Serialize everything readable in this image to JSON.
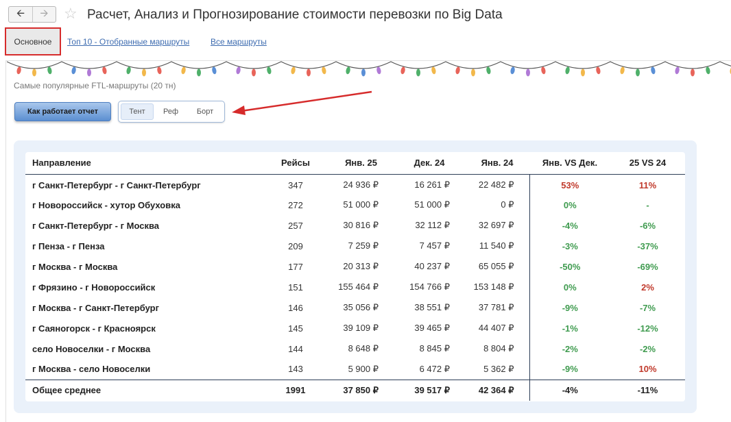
{
  "header": {
    "back_icon": "arrow-left-icon",
    "forward_icon": "arrow-right-icon",
    "favorite_icon": "star-icon",
    "title": "Расчет, Анализ и Прогнозирование стоимости перевозки по Big Data"
  },
  "tabs": [
    {
      "label": "Основное",
      "active": true
    },
    {
      "label": "Топ 10 - Отобранные маршруты",
      "active": false
    },
    {
      "label": "Все маршруты",
      "active": false
    }
  ],
  "report": {
    "subtitle": "Самые популярные FTL-маршруты (20 тн)",
    "how_button": "Как работает отчет",
    "body_types": [
      "Тент",
      "Реф",
      "Борт"
    ],
    "body_type_selected": "Тент"
  },
  "colors": {
    "accent_blue": "#5b8fd1",
    "highlight_red": "#d62b2b",
    "growth_red": "#c0392b",
    "decline_green": "#3f9b4f",
    "panel_bg": "#eaf1fa"
  },
  "table": {
    "columns": [
      "Направление",
      "Рейсы",
      "Янв. 25",
      "Дек. 24",
      "Янв. 24",
      "Янв. VS Дек.",
      "25 VS 24"
    ],
    "rows": [
      {
        "dir": "г Санкт-Петербург - г Санкт-Петербург",
        "trips": "347",
        "jan25": "24 936 ₽",
        "dec24": "16 261 ₽",
        "jan24": "22 482 ₽",
        "mom": "53%",
        "mom_trend": "up",
        "yoy": "11%",
        "yoy_trend": "up"
      },
      {
        "dir": "г Новороссийск - хутор Обуховка",
        "trips": "272",
        "jan25": "51 000 ₽",
        "dec24": "51 000 ₽",
        "jan24": "0 ₽",
        "mom": "0%",
        "mom_trend": "neutral",
        "yoy": "-",
        "yoy_trend": "neutral"
      },
      {
        "dir": "г Санкт-Петербург - г Москва",
        "trips": "257",
        "jan25": "30 816 ₽",
        "dec24": "32 112 ₽",
        "jan24": "32 697 ₽",
        "mom": "-4%",
        "mom_trend": "down",
        "yoy": "-6%",
        "yoy_trend": "down"
      },
      {
        "dir": "г Пенза - г Пенза",
        "trips": "209",
        "jan25": "7 259 ₽",
        "dec24": "7 457 ₽",
        "jan24": "11 540 ₽",
        "mom": "-3%",
        "mom_trend": "down",
        "yoy": "-37%",
        "yoy_trend": "down"
      },
      {
        "dir": "г Москва - г Москва",
        "trips": "177",
        "jan25": "20 313 ₽",
        "dec24": "40 237 ₽",
        "jan24": "65 055 ₽",
        "mom": "-50%",
        "mom_trend": "down",
        "yoy": "-69%",
        "yoy_trend": "down"
      },
      {
        "dir": "г Фрязино - г Новороссийск",
        "trips": "151",
        "jan25": "155 464 ₽",
        "dec24": "154 766 ₽",
        "jan24": "153 148 ₽",
        "mom": "0%",
        "mom_trend": "neutral",
        "yoy": "2%",
        "yoy_trend": "up"
      },
      {
        "dir": "г Москва - г Санкт-Петербург",
        "trips": "146",
        "jan25": "35 056 ₽",
        "dec24": "38 551 ₽",
        "jan24": "37 781 ₽",
        "mom": "-9%",
        "mom_trend": "down",
        "yoy": "-7%",
        "yoy_trend": "down"
      },
      {
        "dir": "г Саяногорск - г Красноярск",
        "trips": "145",
        "jan25": "39 109 ₽",
        "dec24": "39 465 ₽",
        "jan24": "44 407 ₽",
        "mom": "-1%",
        "mom_trend": "down",
        "yoy": "-12%",
        "yoy_trend": "down"
      },
      {
        "dir": "село Новоселки - г Москва",
        "trips": "144",
        "jan25": "8 648 ₽",
        "dec24": "8 845 ₽",
        "jan24": "8 804 ₽",
        "mom": "-2%",
        "mom_trend": "down",
        "yoy": "-2%",
        "yoy_trend": "down"
      },
      {
        "dir": "г Москва - село Новоселки",
        "trips": "143",
        "jan25": "5 900 ₽",
        "dec24": "6 472 ₽",
        "jan24": "5 362 ₽",
        "mom": "-9%",
        "mom_trend": "down",
        "yoy": "10%",
        "yoy_trend": "up"
      }
    ],
    "total": {
      "dir": "Общее среднее",
      "trips": "1991",
      "jan25": "37 850 ₽",
      "dec24": "39 517 ₽",
      "jan24": "42 364 ₽",
      "mom": "-4%",
      "mom_trend": "down",
      "yoy": "-11%",
      "yoy_trend": "down"
    }
  }
}
